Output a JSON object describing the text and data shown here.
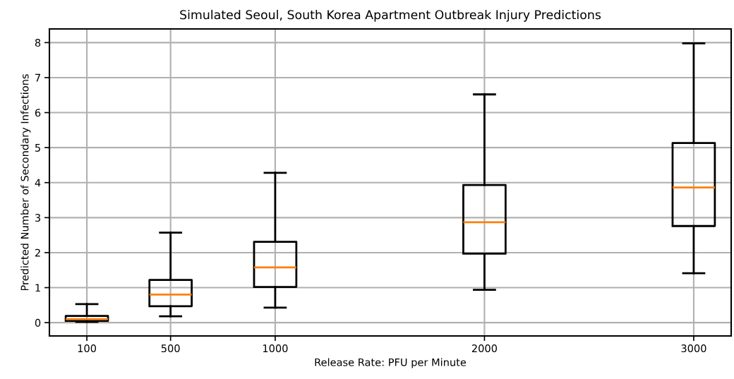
{
  "chart_data": {
    "type": "box",
    "title": "Simulated Seoul, South Korea Apartment Outbreak Injury Predictions",
    "xlabel": "Release Rate: PFU per Minute",
    "ylabel": "Predicted Number of Secondary Infections",
    "x": [
      100,
      500,
      1000,
      2000,
      3000
    ],
    "boxes": [
      {
        "low": 0.02,
        "q1": 0.05,
        "median": 0.1,
        "q3": 0.19,
        "high": 0.53
      },
      {
        "low": 0.18,
        "q1": 0.47,
        "median": 0.8,
        "q3": 1.22,
        "high": 2.57
      },
      {
        "low": 0.43,
        "q1": 1.02,
        "median": 1.58,
        "q3": 2.31,
        "high": 4.28
      },
      {
        "low": 0.94,
        "q1": 1.97,
        "median": 2.87,
        "q3": 3.93,
        "high": 6.52
      },
      {
        "low": 1.41,
        "q1": 2.76,
        "median": 3.86,
        "q3": 5.13,
        "high": 7.98
      }
    ],
    "xlim": [
      -79,
      3179
    ],
    "xticks": [
      100,
      500,
      1000,
      2000,
      3000
    ],
    "ylim": [
      -0.38,
      8.39
    ],
    "yticks": [
      0,
      1,
      2,
      3,
      4,
      5,
      6,
      7,
      8
    ],
    "grid": true
  }
}
